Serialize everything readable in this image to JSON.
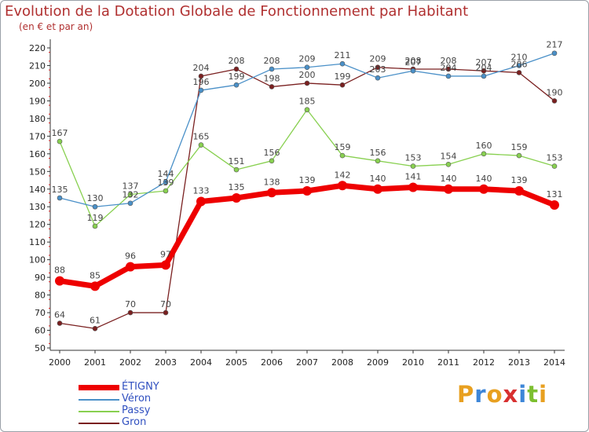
{
  "header": {
    "title": "Evolution de la Dotation Globale de Fonctionnement par Habitant",
    "subtitle": "(en € et par an)"
  },
  "logo": {
    "text": "Proxiti",
    "colors": [
      "#e8a020",
      "#3d86d8",
      "#e8a020",
      "#d83030",
      "#3d86d8",
      "#7cbf30",
      "#e8a020"
    ]
  },
  "chart_data": {
    "type": "line",
    "title": "Evolution de la Dotation Globale de Fonctionnement par Habitant",
    "subtitle": "(en € et par an)",
    "xlabel": "",
    "ylabel": "",
    "categories": [
      "2000",
      "2001",
      "2002",
      "2003",
      "2004",
      "2005",
      "2006",
      "2007",
      "2008",
      "2009",
      "2010",
      "2011",
      "2012",
      "2013",
      "2014"
    ],
    "ylim": [
      50,
      220
    ],
    "yticks": [
      50,
      60,
      70,
      80,
      90,
      100,
      110,
      120,
      130,
      140,
      150,
      160,
      170,
      180,
      190,
      200,
      210,
      220
    ],
    "grid": false,
    "legend_position": "bottom-left",
    "series": [
      {
        "name": "ÉTIGNY",
        "color": "#ee0000",
        "values": [
          88,
          85,
          96,
          97,
          133,
          135,
          138,
          139,
          142,
          140,
          141,
          140,
          140,
          139,
          131
        ],
        "labels": [
          "88",
          "85",
          "96",
          "97",
          "133",
          "135",
          "138",
          "139",
          "142",
          "140",
          "141",
          "140",
          "140",
          "139",
          "131"
        ]
      },
      {
        "name": "Véron",
        "color": "#4a90c8",
        "values": [
          135,
          130,
          132,
          144,
          196,
          199,
          208,
          209,
          211,
          203,
          207,
          204,
          204,
          210,
          217
        ],
        "labels": [
          "135",
          "130",
          "132",
          "144",
          "196",
          "199",
          "208",
          "209",
          "211",
          "203",
          "207",
          "204",
          "204",
          "210",
          "217"
        ]
      },
      {
        "name": "Passy",
        "color": "#88d050",
        "values": [
          167,
          119,
          137,
          139,
          165,
          151,
          156,
          185,
          159,
          156,
          153,
          154,
          160,
          159,
          153
        ],
        "labels": [
          "167",
          "119",
          "137",
          "139",
          "165",
          "151",
          "156",
          "185",
          "159",
          "156",
          "153",
          "154",
          "160",
          "159",
          "153"
        ]
      },
      {
        "name": "Gron",
        "color": "#7a2020",
        "values": [
          64,
          61,
          70,
          70,
          204,
          208,
          198,
          200,
          199,
          209,
          208,
          208,
          207,
          206,
          190
        ],
        "labels": [
          "64",
          "61",
          "70",
          "70",
          "204",
          "208",
          "198",
          "200",
          "199",
          "209",
          "208",
          "208",
          "207",
          "206",
          "190"
        ]
      }
    ]
  }
}
